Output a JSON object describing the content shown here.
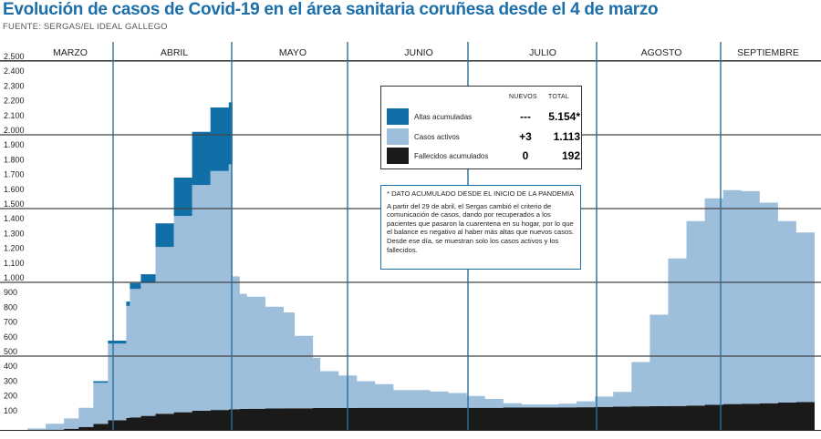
{
  "title": "Evolución de casos de Covid-19 en el área sanitaria coruñesa desde el 4 de marzo",
  "source": "FUENTE: SERGAS/EL IDEAL GALLEGO",
  "colors": {
    "title": "#1c6fa8",
    "altas": "#0f6fa6",
    "activos": "#9dbfdc",
    "fallecidos": "#1a1a1a",
    "grid": "#444444",
    "month_divider": "#2a6f9a"
  },
  "legend": {
    "header_new": "NUEVOS",
    "header_total": "TOTAL",
    "rows": [
      {
        "label": "Altas acumuladas",
        "new": "---",
        "total": "5.154*",
        "color": "#0f6fa6"
      },
      {
        "label": "Casos activos",
        "new": "+3",
        "total": "1.113",
        "color": "#9dbfdc"
      },
      {
        "label": "Fallecidos acumulados",
        "new": "0",
        "total": "192",
        "color": "#1a1a1a"
      }
    ]
  },
  "note": {
    "title": "* DATO ACUMULADO DESDE EL INICIO DE LA PANDEMIA",
    "text": "A partir del 29 de abril, el Sergas cambió el criterio de comunicación de casos, dando por recuperados a los pacientes que pasaron la cuarentena en su hogar, por lo que el balance es negativo al haber más altas que nuevos casos. Desde ese día, se muestran solo los casos activos y los fallecidos."
  },
  "chart_data": {
    "type": "area",
    "stacked": true,
    "months": [
      "MARZO",
      "ABRIL",
      "MAYO",
      "JUNIO",
      "JULIO",
      "AGOSTO",
      "SEPTIEMBRE"
    ],
    "y_ticks": [
      "2.500",
      "2.400",
      "2.300",
      "2.200",
      "2.100",
      "2.000",
      "1.900",
      "1.800",
      "1.700",
      "1.600",
      "1.500",
      "1.400",
      "1.300",
      "1.200",
      "1.100",
      "1.000",
      "900",
      "800",
      "700",
      "600",
      "500",
      "400",
      "300",
      "200",
      "100"
    ],
    "ylim": [
      0,
      2500
    ],
    "grid_major": [
      500,
      1000,
      1500,
      2000,
      2500
    ],
    "x_days": [
      0,
      5,
      10,
      14,
      18,
      22,
      27,
      28,
      31,
      35,
      40,
      45,
      50,
      55,
      56,
      58,
      60,
      65,
      70,
      73,
      78,
      80,
      85,
      90,
      95,
      100,
      105,
      110,
      115,
      120,
      125,
      130,
      135,
      140,
      145,
      150,
      155,
      160,
      165,
      170,
      175,
      180,
      185,
      190,
      195,
      200,
      205,
      210,
      215
    ],
    "series": [
      {
        "name": "Fallecidos acumulados",
        "values": [
          0,
          2,
          8,
          20,
          40,
          65,
          80,
          85,
          95,
          110,
          120,
          130,
          135,
          140,
          141,
          142,
          143,
          145,
          146,
          147,
          148,
          148,
          149,
          150,
          150,
          150,
          150,
          150,
          150,
          150,
          150,
          151,
          152,
          152,
          153,
          154,
          156,
          158,
          160,
          161,
          162,
          165,
          170,
          175,
          178,
          180,
          185,
          188,
          190
        ]
      },
      {
        "name": "Casos activos",
        "values": [
          10,
          40,
          70,
          130,
          280,
          520,
          760,
          870,
          900,
          1130,
          1330,
          1530,
          1620,
          1660,
          900,
          780,
          760,
          690,
          650,
          490,
          340,
          250,
          220,
          180,
          160,
          120,
          120,
          110,
          100,
          80,
          60,
          30,
          20,
          20,
          25,
          40,
          70,
          100,
          300,
          620,
          1000,
          1250,
          1400,
          1450,
          1440,
          1360,
          1230,
          1150,
          1110
        ]
      },
      {
        "name": "Altas acumuladas",
        "values": [
          0,
          0,
          0,
          0,
          10,
          20,
          30,
          40,
          60,
          160,
          260,
          360,
          430,
          420,
          0,
          0,
          0,
          0,
          0,
          0,
          0,
          0,
          0,
          0,
          0,
          0,
          0,
          0,
          0,
          0,
          0,
          0,
          0,
          0,
          0,
          0,
          0,
          0,
          0,
          0,
          0,
          0,
          0,
          0,
          0,
          0,
          0,
          0,
          0
        ]
      }
    ]
  }
}
